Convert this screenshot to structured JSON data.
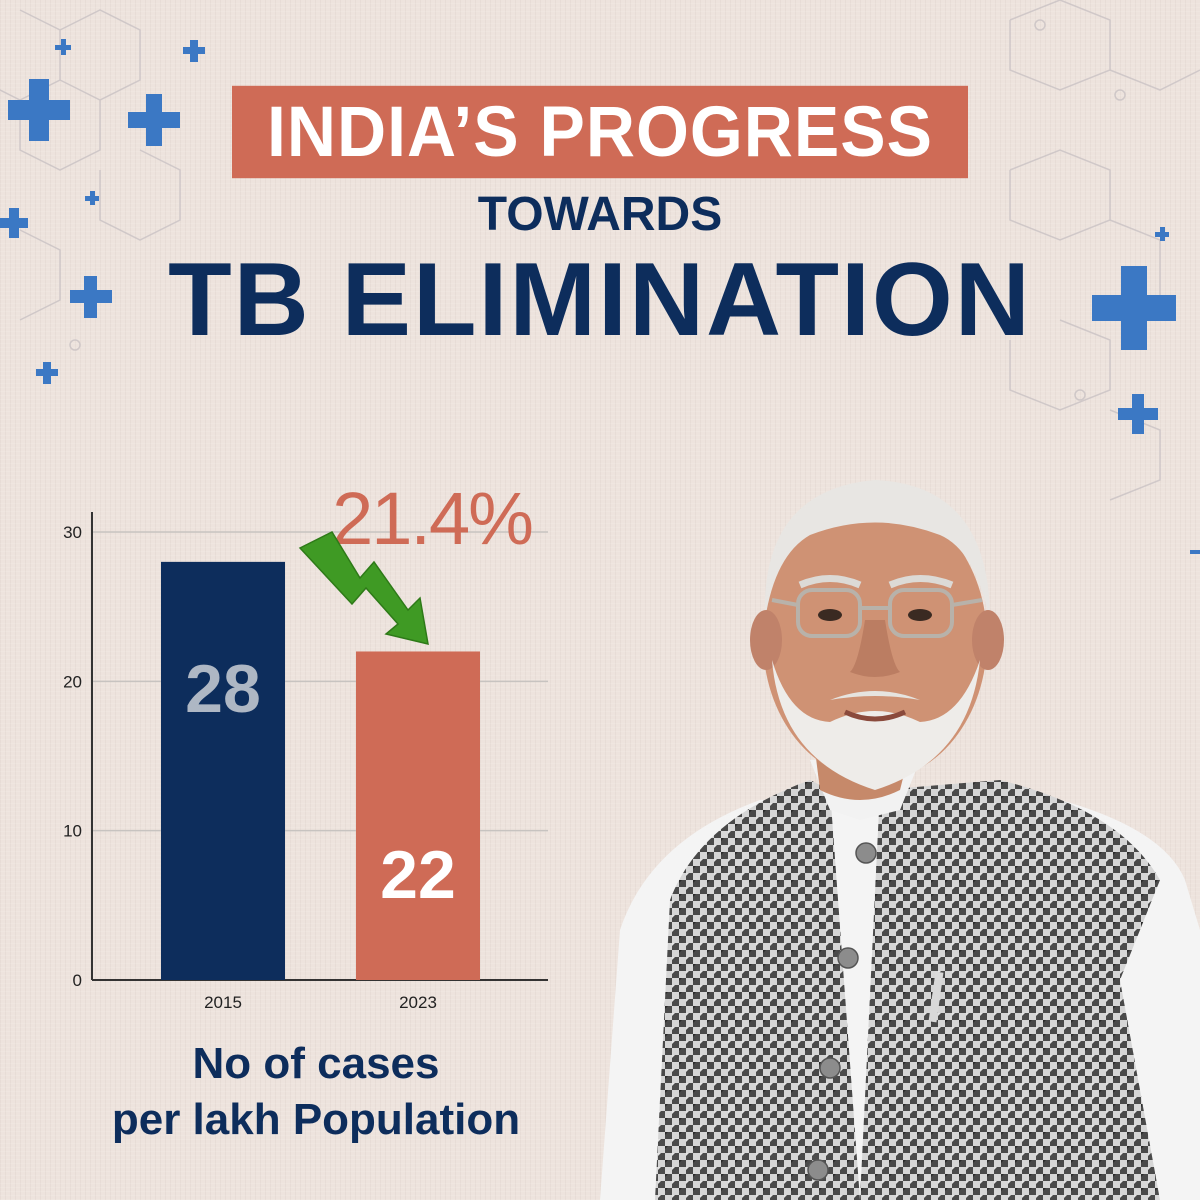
{
  "title": {
    "line1": "INDIA’S PROGRESS",
    "line2": "TOWARDS",
    "line3": "TB ELIMINATION"
  },
  "colors": {
    "background": "#ede3dd",
    "navy": "#0d2d5c",
    "coral": "#cf6b56",
    "arrow_green": "#3f9a24",
    "plus_blue": "#3b78c4"
  },
  "chart_data": {
    "type": "bar",
    "categories": [
      "2015",
      "2023"
    ],
    "values": [
      28,
      22
    ],
    "bar_labels": [
      "28",
      "22"
    ],
    "bar_colors": [
      "#0d2d5c",
      "#cf6b56"
    ],
    "ylim": [
      0,
      30
    ],
    "yticks": [
      0,
      10,
      20,
      30
    ],
    "grid": true,
    "annotation": "21.4%",
    "caption_line1": "No of cases",
    "caption_line2": "per lakh Population"
  },
  "icons": [
    "plus-icon",
    "down-arrow-icon"
  ]
}
